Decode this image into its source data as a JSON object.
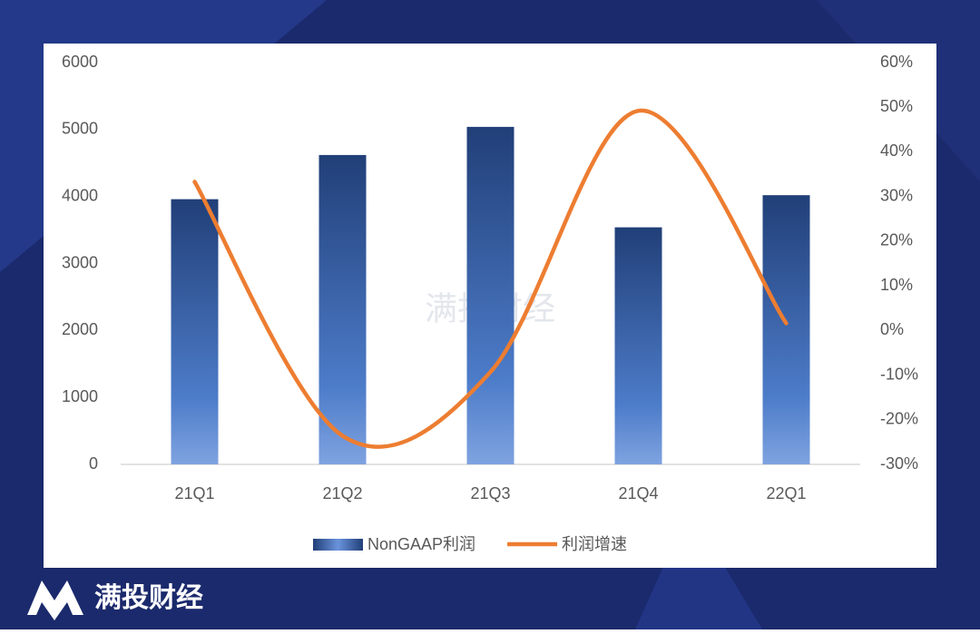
{
  "chart_data": {
    "type": "combo",
    "categories": [
      "21Q1",
      "21Q2",
      "21Q3",
      "21Q4",
      "22Q1"
    ],
    "series": [
      {
        "name": "NonGAAP利润",
        "type": "bar",
        "color": "#2a4f8f",
        "values": [
          3960,
          4620,
          5040,
          3540,
          4020
        ]
      },
      {
        "name": "利润增速",
        "type": "line",
        "color": "#ed7d31",
        "axis": "y2",
        "values": [
          33.3,
          -23.6,
          -9.3,
          49.2,
          1.6
        ]
      }
    ],
    "ylim": [
      0,
      6000
    ],
    "yticks": [
      0,
      1000,
      2000,
      3000,
      4000,
      5000,
      6000
    ],
    "y2lim": [
      -30,
      60
    ],
    "y2ticks": [
      {
        "value": -30,
        "label": "-30%"
      },
      {
        "value": -20,
        "label": "-20%"
      },
      {
        "value": -10,
        "label": "-10%"
      },
      {
        "value": 0,
        "label": "0%"
      },
      {
        "value": 10,
        "label": "10%"
      },
      {
        "value": 20,
        "label": "20%"
      },
      {
        "value": 30,
        "label": "30%"
      },
      {
        "value": 40,
        "label": "40%"
      },
      {
        "value": 50,
        "label": "50%"
      },
      {
        "value": 60,
        "label": "60%"
      }
    ],
    "grid": false,
    "legend": "bottom"
  },
  "watermark": "满投财经",
  "logo": "满投财经"
}
